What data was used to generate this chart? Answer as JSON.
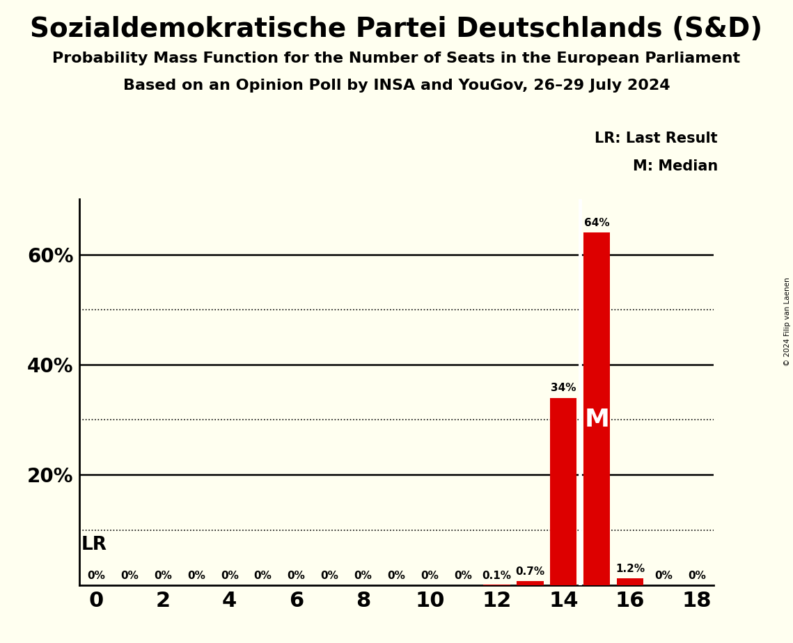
{
  "title": "Sozialdemokratische Partei Deutschlands (S&D)",
  "subtitle1": "Probability Mass Function for the Number of Seats in the European Parliament",
  "subtitle2": "Based on an Opinion Poll by INSA and YouGov, 26–29 July 2024",
  "copyright": "© 2024 Filip van Laenen",
  "seats": [
    0,
    1,
    2,
    3,
    4,
    5,
    6,
    7,
    8,
    9,
    10,
    11,
    12,
    13,
    14,
    15,
    16,
    17,
    18
  ],
  "probabilities": [
    0.0,
    0.0,
    0.0,
    0.0,
    0.0,
    0.0,
    0.0,
    0.0,
    0.0,
    0.0,
    0.0,
    0.0,
    0.1,
    0.7,
    34.0,
    64.0,
    1.2,
    0.0,
    0.0
  ],
  "bar_color": "#dd0000",
  "background_color": "#fffff0",
  "last_result_seat": 15,
  "median_seat": 15,
  "xlim": [
    -0.5,
    18.5
  ],
  "ylim": [
    0,
    70
  ],
  "dotted_lines": [
    10,
    30,
    50
  ],
  "solid_lines": [
    20,
    40,
    60
  ],
  "legend_lr_text": "LR: Last Result",
  "legend_m_text": "M: Median",
  "lr_label": "LR",
  "m_label": "M",
  "lr_line_x": 14.5
}
